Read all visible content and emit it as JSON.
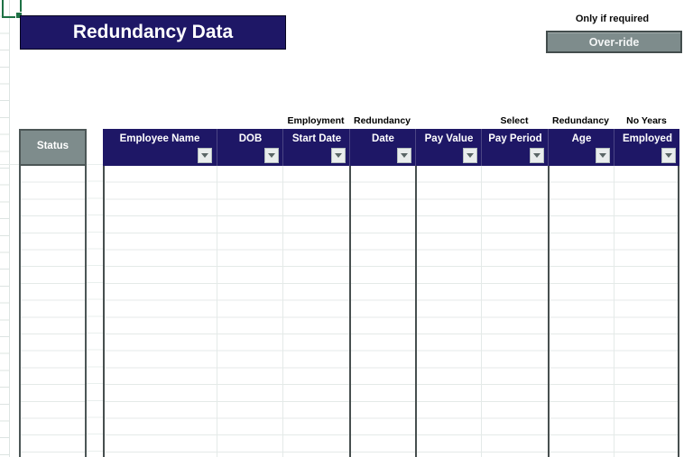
{
  "title": {
    "text": "Redundancy Data"
  },
  "override": {
    "note": "Only if required",
    "button_label": "Over-ride"
  },
  "table": {
    "status_header": "Status",
    "columns": [
      {
        "label": "Employee Name",
        "group": ""
      },
      {
        "label": "DOB",
        "group": ""
      },
      {
        "label": "Start Date",
        "group": "Employment"
      },
      {
        "label": "Date",
        "group": "Redundancy"
      },
      {
        "label": "Pay Value",
        "group": ""
      },
      {
        "label": "Pay Period",
        "group": "Select"
      },
      {
        "label": "Age",
        "group": "Redundancy"
      },
      {
        "label": "Employed",
        "group": "No Years"
      }
    ],
    "visible_empty_rows": 17,
    "cell_values": []
  },
  "colors": {
    "header_navy": "#1e1766",
    "status_gray": "#7e8c8c",
    "selection_green": "#1e7145",
    "gridline": "#e4eae8",
    "dark_border": "#474f4f"
  }
}
